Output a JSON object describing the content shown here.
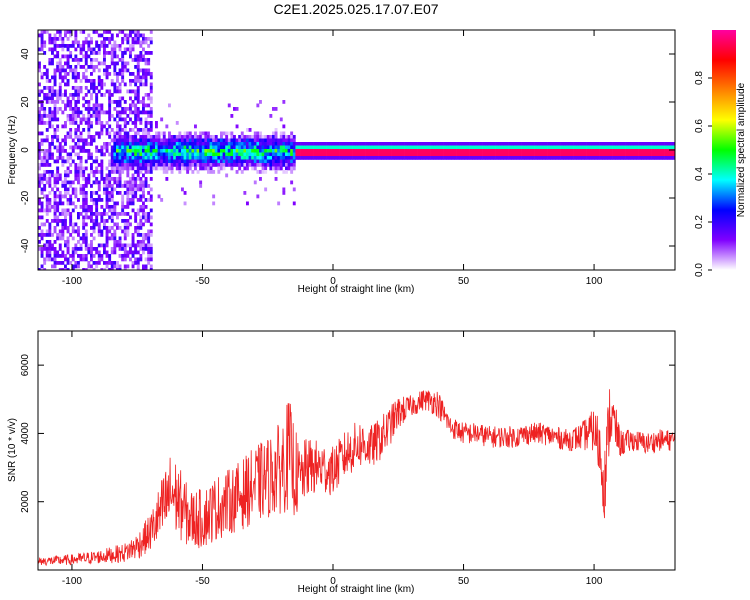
{
  "figure": {
    "title": "C2E1.2025.025.17.07.E07"
  },
  "chart_data": [
    {
      "type": "heatmap",
      "xlabel": "Height of straight line (km)",
      "ylabel": "Frequency (Hz)",
      "xlim": [
        -113,
        131
      ],
      "ylim": [
        -50,
        50
      ],
      "xticks": [
        -100,
        -50,
        0,
        50,
        100
      ],
      "yticks": [
        -40,
        -20,
        0,
        20,
        40
      ],
      "colorbar": {
        "label": "Normalized spectral amplitude",
        "range": [
          0.0,
          1.0
        ],
        "ticks": [
          0.0,
          0.2,
          0.4,
          0.6,
          0.8
        ],
        "colors": [
          "#ffffff",
          "#8000ff",
          "#0000ff",
          "#00ffff",
          "#00ff00",
          "#ffff00",
          "#ff8000",
          "#ff0000",
          "#ff00a0"
        ]
      },
      "features": {
        "carrier_frequency_hz": 0,
        "noise_band_km": [
          -113,
          -70
        ],
        "broadened_band_km": [
          -85,
          -15
        ],
        "stable_band_km": [
          -15,
          131
        ],
        "peak_amplitude": 0.95
      }
    },
    {
      "type": "line",
      "xlabel": "Height of straight line (km)",
      "ylabel": "SNR (10 * v/v)",
      "xlim": [
        -113,
        131
      ],
      "ylim": [
        0,
        7000
      ],
      "xticks": [
        -100,
        -50,
        0,
        50,
        100
      ],
      "yticks": [
        2000,
        4000,
        6000
      ],
      "series": [
        {
          "color": "#ee2222",
          "x": [
            -113,
            -100,
            -90,
            -80,
            -75,
            -70,
            -65,
            -62,
            -60,
            -55,
            -50,
            -45,
            -40,
            -35,
            -30,
            -25,
            -20,
            -17,
            -15,
            -13,
            -10,
            -5,
            0,
            5,
            10,
            15,
            20,
            25,
            30,
            35,
            40,
            45,
            50,
            55,
            60,
            65,
            70,
            75,
            80,
            85,
            90,
            95,
            100,
            102,
            104,
            106,
            108,
            110,
            115,
            120,
            125,
            131
          ],
          "y": [
            250,
            300,
            380,
            500,
            700,
            1100,
            1800,
            2300,
            2100,
            1500,
            1500,
            1800,
            2000,
            2200,
            2500,
            2700,
            3000,
            3400,
            3000,
            2600,
            3000,
            3000,
            2900,
            3400,
            3700,
            3600,
            4000,
            4600,
            4800,
            5000,
            4900,
            4200,
            4000,
            4000,
            3900,
            3900,
            3900,
            4000,
            4000,
            3900,
            3800,
            3900,
            4100,
            3600,
            2500,
            4600,
            4200,
            3700,
            3800,
            3700,
            3800,
            3800
          ],
          "spread": [
            150,
            200,
            250,
            350,
            500,
            700,
            1300,
            1500,
            1400,
            1100,
            1100,
            1200,
            1200,
            1300,
            1400,
            1500,
            1700,
            2100,
            1800,
            1300,
            1100,
            1000,
            900,
            900,
            900,
            800,
            800,
            600,
            400,
            400,
            500,
            400,
            400,
            400,
            400,
            400,
            400,
            400,
            400,
            400,
            400,
            500,
            800,
            1200,
            1300,
            1300,
            900,
            500,
            400,
            400,
            400,
            400
          ]
        }
      ]
    }
  ]
}
